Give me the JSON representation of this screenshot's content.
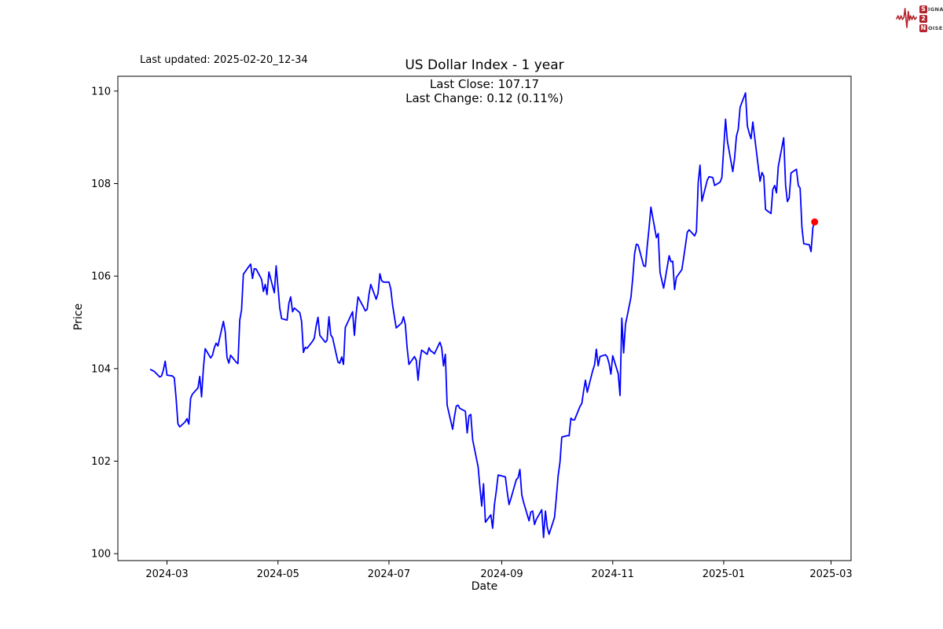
{
  "header": {
    "last_updated": "Last updated: 2025-02-20_12-34"
  },
  "logo": {
    "rows": [
      {
        "initial": "S",
        "rest": "IGNAL"
      },
      {
        "initial": "2",
        "rest": ""
      },
      {
        "initial": "N",
        "rest": "OISE"
      }
    ],
    "accent_color": "#b5232d"
  },
  "chart_data": {
    "type": "line",
    "title": "US Dollar Index - 1 year",
    "subtitle_lines": [
      "Last Close: 107.17",
      "Last Change: 0.12 (0.11%)"
    ],
    "last_close": 107.17,
    "last_change": 0.12,
    "last_change_pct": "0.11%",
    "xlabel": "Date",
    "ylabel": "Price",
    "grid": false,
    "legend": "none",
    "line_color": "#0000ff",
    "marker_color": "#ff0000",
    "ylim": [
      99.85,
      110.32
    ],
    "xlim": [
      "2024-02-03",
      "2025-03-12"
    ],
    "y_ticks": [
      100,
      102,
      104,
      106,
      108,
      110
    ],
    "x_ticks": [
      {
        "label": "2024-03",
        "date": "2024-03-01"
      },
      {
        "label": "2024-05",
        "date": "2024-05-01"
      },
      {
        "label": "2024-07",
        "date": "2024-07-01"
      },
      {
        "label": "2024-09",
        "date": "2024-09-01"
      },
      {
        "label": "2024-11",
        "date": "2024-11-01"
      },
      {
        "label": "2025-01",
        "date": "2025-01-01"
      },
      {
        "label": "2025-03",
        "date": "2025-03-01"
      }
    ],
    "series": {
      "name": "US Dollar Index",
      "points": [
        [
          "2024-02-21",
          103.98
        ],
        [
          "2024-02-22",
          103.96
        ],
        [
          "2024-02-23",
          103.94
        ],
        [
          "2024-02-26",
          103.82
        ],
        [
          "2024-02-27",
          103.84
        ],
        [
          "2024-02-28",
          103.97
        ],
        [
          "2024-02-29",
          104.16
        ],
        [
          "2024-03-01",
          103.86
        ],
        [
          "2024-03-04",
          103.84
        ],
        [
          "2024-03-05",
          103.8
        ],
        [
          "2024-03-06",
          103.36
        ],
        [
          "2024-03-07",
          102.81
        ],
        [
          "2024-03-08",
          102.74
        ],
        [
          "2024-03-11",
          102.85
        ],
        [
          "2024-03-12",
          102.92
        ],
        [
          "2024-03-13",
          102.8
        ],
        [
          "2024-03-14",
          103.36
        ],
        [
          "2024-03-15",
          103.45
        ],
        [
          "2024-03-18",
          103.58
        ],
        [
          "2024-03-19",
          103.83
        ],
        [
          "2024-03-20",
          103.39
        ],
        [
          "2024-03-21",
          104.0
        ],
        [
          "2024-03-22",
          104.43
        ],
        [
          "2024-03-25",
          104.23
        ],
        [
          "2024-03-26",
          104.29
        ],
        [
          "2024-03-27",
          104.45
        ],
        [
          "2024-03-28",
          104.55
        ],
        [
          "2024-03-29",
          104.49
        ],
        [
          "2024-04-01",
          105.02
        ],
        [
          "2024-04-02",
          104.8
        ],
        [
          "2024-04-03",
          104.24
        ],
        [
          "2024-04-04",
          104.12
        ],
        [
          "2024-04-05",
          104.29
        ],
        [
          "2024-04-08",
          104.14
        ],
        [
          "2024-04-09",
          104.11
        ],
        [
          "2024-04-10",
          105.05
        ],
        [
          "2024-04-11",
          105.27
        ],
        [
          "2024-04-12",
          106.04
        ],
        [
          "2024-04-15",
          106.21
        ],
        [
          "2024-04-16",
          106.26
        ],
        [
          "2024-04-17",
          105.95
        ],
        [
          "2024-04-18",
          106.16
        ],
        [
          "2024-04-19",
          106.15
        ],
        [
          "2024-04-22",
          105.93
        ],
        [
          "2024-04-23",
          105.67
        ],
        [
          "2024-04-24",
          105.82
        ],
        [
          "2024-04-25",
          105.6
        ],
        [
          "2024-04-26",
          106.09
        ],
        [
          "2024-04-29",
          105.64
        ],
        [
          "2024-04-30",
          106.22
        ],
        [
          "2024-05-01",
          105.77
        ],
        [
          "2024-05-02",
          105.31
        ],
        [
          "2024-05-03",
          105.08
        ],
        [
          "2024-05-06",
          105.05
        ],
        [
          "2024-05-07",
          105.41
        ],
        [
          "2024-05-08",
          105.55
        ],
        [
          "2024-05-09",
          105.23
        ],
        [
          "2024-05-10",
          105.31
        ],
        [
          "2024-05-13",
          105.21
        ],
        [
          "2024-05-14",
          105.02
        ],
        [
          "2024-05-15",
          104.35
        ],
        [
          "2024-05-16",
          104.46
        ],
        [
          "2024-05-17",
          104.44
        ],
        [
          "2024-05-20",
          104.59
        ],
        [
          "2024-05-21",
          104.66
        ],
        [
          "2024-05-22",
          104.92
        ],
        [
          "2024-05-23",
          105.11
        ],
        [
          "2024-05-24",
          104.72
        ],
        [
          "2024-05-27",
          104.57
        ],
        [
          "2024-05-28",
          104.61
        ],
        [
          "2024-05-29",
          105.12
        ],
        [
          "2024-05-30",
          104.73
        ],
        [
          "2024-05-31",
          104.67
        ],
        [
          "2024-06-03",
          104.14
        ],
        [
          "2024-06-04",
          104.12
        ],
        [
          "2024-06-05",
          104.25
        ],
        [
          "2024-06-06",
          104.09
        ],
        [
          "2024-06-07",
          104.89
        ],
        [
          "2024-06-10",
          105.14
        ],
        [
          "2024-06-11",
          105.23
        ],
        [
          "2024-06-12",
          104.72
        ],
        [
          "2024-06-13",
          105.2
        ],
        [
          "2024-06-14",
          105.55
        ],
        [
          "2024-06-17",
          105.33
        ],
        [
          "2024-06-18",
          105.25
        ],
        [
          "2024-06-19",
          105.28
        ],
        [
          "2024-06-20",
          105.6
        ],
        [
          "2024-06-21",
          105.82
        ],
        [
          "2024-06-24",
          105.5
        ],
        [
          "2024-06-25",
          105.63
        ],
        [
          "2024-06-26",
          106.05
        ],
        [
          "2024-06-27",
          105.9
        ],
        [
          "2024-06-28",
          105.87
        ],
        [
          "2024-07-01",
          105.87
        ],
        [
          "2024-07-02",
          105.72
        ],
        [
          "2024-07-03",
          105.37
        ],
        [
          "2024-07-05",
          104.88
        ],
        [
          "2024-07-08",
          104.99
        ],
        [
          "2024-07-09",
          105.12
        ],
        [
          "2024-07-10",
          104.95
        ],
        [
          "2024-07-11",
          104.45
        ],
        [
          "2024-07-12",
          104.09
        ],
        [
          "2024-07-15",
          104.26
        ],
        [
          "2024-07-16",
          104.18
        ],
        [
          "2024-07-17",
          103.75
        ],
        [
          "2024-07-18",
          104.17
        ],
        [
          "2024-07-19",
          104.4
        ],
        [
          "2024-07-22",
          104.31
        ],
        [
          "2024-07-23",
          104.45
        ],
        [
          "2024-07-24",
          104.38
        ],
        [
          "2024-07-25",
          104.36
        ],
        [
          "2024-07-26",
          104.32
        ],
        [
          "2024-07-29",
          104.57
        ],
        [
          "2024-07-30",
          104.45
        ],
        [
          "2024-07-31",
          104.06
        ],
        [
          "2024-08-01",
          104.31
        ],
        [
          "2024-08-02",
          103.21
        ],
        [
          "2024-08-05",
          102.69
        ],
        [
          "2024-08-06",
          102.96
        ],
        [
          "2024-08-07",
          103.19
        ],
        [
          "2024-08-08",
          103.21
        ],
        [
          "2024-08-09",
          103.14
        ],
        [
          "2024-08-12",
          103.08
        ],
        [
          "2024-08-13",
          102.61
        ],
        [
          "2024-08-14",
          102.98
        ],
        [
          "2024-08-15",
          103.01
        ],
        [
          "2024-08-16",
          102.46
        ],
        [
          "2024-08-19",
          101.88
        ],
        [
          "2024-08-20",
          101.44
        ],
        [
          "2024-08-21",
          101.03
        ],
        [
          "2024-08-22",
          101.51
        ],
        [
          "2024-08-23",
          100.68
        ],
        [
          "2024-08-26",
          100.84
        ],
        [
          "2024-08-27",
          100.55
        ],
        [
          "2024-08-28",
          101.06
        ],
        [
          "2024-08-29",
          101.35
        ],
        [
          "2024-08-30",
          101.7
        ],
        [
          "2024-09-03",
          101.66
        ],
        [
          "2024-09-04",
          101.34
        ],
        [
          "2024-09-05",
          101.06
        ],
        [
          "2024-09-06",
          101.19
        ],
        [
          "2024-09-09",
          101.6
        ],
        [
          "2024-09-10",
          101.64
        ],
        [
          "2024-09-11",
          101.82
        ],
        [
          "2024-09-12",
          101.27
        ],
        [
          "2024-09-13",
          101.11
        ],
        [
          "2024-09-16",
          100.71
        ],
        [
          "2024-09-17",
          100.9
        ],
        [
          "2024-09-18",
          100.92
        ],
        [
          "2024-09-19",
          100.63
        ],
        [
          "2024-09-20",
          100.74
        ],
        [
          "2024-09-23",
          100.95
        ],
        [
          "2024-09-24",
          100.35
        ],
        [
          "2024-09-25",
          100.92
        ],
        [
          "2024-09-26",
          100.57
        ],
        [
          "2024-09-27",
          100.42
        ],
        [
          "2024-09-30",
          100.78
        ],
        [
          "2024-10-01",
          101.2
        ],
        [
          "2024-10-02",
          101.69
        ],
        [
          "2024-10-03",
          101.98
        ],
        [
          "2024-10-04",
          102.52
        ],
        [
          "2024-10-07",
          102.55
        ],
        [
          "2024-10-08",
          102.55
        ],
        [
          "2024-10-09",
          102.93
        ],
        [
          "2024-10-10",
          102.89
        ],
        [
          "2024-10-11",
          102.89
        ],
        [
          "2024-10-14",
          103.18
        ],
        [
          "2024-10-15",
          103.25
        ],
        [
          "2024-10-16",
          103.52
        ],
        [
          "2024-10-17",
          103.75
        ],
        [
          "2024-10-18",
          103.49
        ],
        [
          "2024-10-21",
          103.96
        ],
        [
          "2024-10-22",
          104.08
        ],
        [
          "2024-10-23",
          104.42
        ],
        [
          "2024-10-24",
          104.06
        ],
        [
          "2024-10-25",
          104.26
        ],
        [
          "2024-10-28",
          104.3
        ],
        [
          "2024-10-29",
          104.25
        ],
        [
          "2024-10-30",
          104.11
        ],
        [
          "2024-10-31",
          103.88
        ],
        [
          "2024-11-01",
          104.28
        ],
        [
          "2024-11-04",
          103.89
        ],
        [
          "2024-11-05",
          103.42
        ],
        [
          "2024-11-06",
          105.09
        ],
        [
          "2024-11-07",
          104.34
        ],
        [
          "2024-11-08",
          104.95
        ],
        [
          "2024-11-11",
          105.54
        ],
        [
          "2024-11-12",
          105.96
        ],
        [
          "2024-11-13",
          106.48
        ],
        [
          "2024-11-14",
          106.69
        ],
        [
          "2024-11-15",
          106.67
        ],
        [
          "2024-11-18",
          106.22
        ],
        [
          "2024-11-19",
          106.21
        ],
        [
          "2024-11-20",
          106.66
        ],
        [
          "2024-11-21",
          107.05
        ],
        [
          "2024-11-22",
          107.49
        ],
        [
          "2024-11-25",
          106.83
        ],
        [
          "2024-11-26",
          106.92
        ],
        [
          "2024-11-27",
          106.08
        ],
        [
          "2024-11-29",
          105.74
        ],
        [
          "2024-12-02",
          106.44
        ],
        [
          "2024-12-03",
          106.31
        ],
        [
          "2024-12-04",
          106.32
        ],
        [
          "2024-12-05",
          105.71
        ],
        [
          "2024-12-06",
          105.97
        ],
        [
          "2024-12-09",
          106.14
        ],
        [
          "2024-12-10",
          106.4
        ],
        [
          "2024-12-11",
          106.67
        ],
        [
          "2024-12-12",
          106.95
        ],
        [
          "2024-12-13",
          107.0
        ],
        [
          "2024-12-16",
          106.87
        ],
        [
          "2024-12-17",
          106.96
        ],
        [
          "2024-12-18",
          108.02
        ],
        [
          "2024-12-19",
          108.4
        ],
        [
          "2024-12-20",
          107.62
        ],
        [
          "2024-12-23",
          108.08
        ],
        [
          "2024-12-24",
          108.15
        ],
        [
          "2024-12-26",
          108.13
        ],
        [
          "2024-12-27",
          107.96
        ],
        [
          "2024-12-30",
          108.03
        ],
        [
          "2024-12-31",
          108.13
        ],
        [
          "2025-01-02",
          109.39
        ],
        [
          "2025-01-03",
          108.92
        ],
        [
          "2025-01-06",
          108.26
        ],
        [
          "2025-01-07",
          108.55
        ],
        [
          "2025-01-08",
          109.02
        ],
        [
          "2025-01-09",
          109.18
        ],
        [
          "2025-01-10",
          109.65
        ],
        [
          "2025-01-13",
          109.96
        ],
        [
          "2025-01-14",
          109.25
        ],
        [
          "2025-01-15",
          109.09
        ],
        [
          "2025-01-16",
          108.97
        ],
        [
          "2025-01-17",
          109.33
        ],
        [
          "2025-01-21",
          108.05
        ],
        [
          "2025-01-22",
          108.24
        ],
        [
          "2025-01-23",
          108.16
        ],
        [
          "2025-01-24",
          107.44
        ],
        [
          "2025-01-27",
          107.35
        ],
        [
          "2025-01-28",
          107.87
        ],
        [
          "2025-01-29",
          107.96
        ],
        [
          "2025-01-30",
          107.8
        ],
        [
          "2025-01-31",
          108.37
        ],
        [
          "2025-02-03",
          108.99
        ],
        [
          "2025-02-04",
          107.96
        ],
        [
          "2025-02-05",
          107.61
        ],
        [
          "2025-02-06",
          107.69
        ],
        [
          "2025-02-07",
          108.23
        ],
        [
          "2025-02-10",
          108.31
        ],
        [
          "2025-02-11",
          107.96
        ],
        [
          "2025-02-12",
          107.9
        ],
        [
          "2025-02-13",
          107.05
        ],
        [
          "2025-02-14",
          106.7
        ],
        [
          "2025-02-17",
          106.68
        ],
        [
          "2025-02-18",
          106.53
        ],
        [
          "2025-02-19",
          107.05
        ],
        [
          "2025-02-20",
          107.17
        ]
      ]
    }
  }
}
